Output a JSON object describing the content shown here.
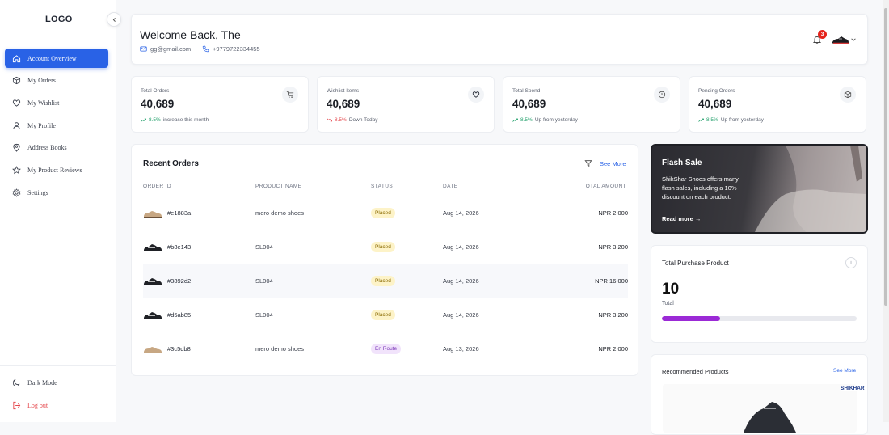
{
  "sidebar": {
    "logo": "LOGO",
    "items": [
      {
        "label": "Account Overview",
        "icon": "home-icon",
        "active": true
      },
      {
        "label": "My Orders",
        "icon": "box-icon"
      },
      {
        "label": "My Wishlist",
        "icon": "heart-icon"
      },
      {
        "label": "My Profile",
        "icon": "user-icon"
      },
      {
        "label": "Address Books",
        "icon": "map-pin-icon"
      },
      {
        "label": "My Product Reviews",
        "icon": "star-icon"
      },
      {
        "label": "Settings",
        "icon": "gear-icon"
      }
    ],
    "bottom": [
      {
        "label": "Dark Mode",
        "icon": "moon-icon"
      },
      {
        "label": "Log out",
        "icon": "logout-icon"
      }
    ]
  },
  "header": {
    "welcome": "Welcome Back, The",
    "email": "gg@gmail.com",
    "phone": "+9779722334455",
    "notification_count": "3"
  },
  "stats": [
    {
      "label": "Total Orders",
      "value": "40,689",
      "change": "8.5%",
      "change_text": "increase this month",
      "trend": "up",
      "icon": "cart-icon"
    },
    {
      "label": "Wishlist Items",
      "value": "40,689",
      "change": "8.5%",
      "change_text": "Down Today",
      "trend": "down",
      "icon": "heart-icon"
    },
    {
      "label": "Total Spend",
      "value": "40,689",
      "change": "8.5%",
      "change_text": "Up from yesterday",
      "trend": "up",
      "icon": "clock-icon"
    },
    {
      "label": "Pending Orders",
      "value": "40,689",
      "change": "8.5%",
      "change_text": "Up from yesterday",
      "trend": "up",
      "icon": "cube-icon"
    }
  ],
  "orders": {
    "title": "Recent Orders",
    "see_more": "See More",
    "columns": [
      "ORDER ID",
      "PRODUCT NAME",
      "STATUS",
      "DATE",
      "TOTAL AMOUNT"
    ],
    "rows": [
      {
        "id": "#e1883a",
        "product": "mero demo shoes",
        "status": "Placed",
        "date": "Aug 14, 2026",
        "amount": "NPR 2,000",
        "thumb": "tan"
      },
      {
        "id": "#b8e143",
        "product": "SL004",
        "status": "Placed",
        "date": "Aug 14, 2026",
        "amount": "NPR 3,200",
        "thumb": "dark"
      },
      {
        "id": "#3892d2",
        "product": "SL004",
        "status": "Placed",
        "date": "Aug 14, 2026",
        "amount": "NPR 16,000",
        "thumb": "dark"
      },
      {
        "id": "#d5ab85",
        "product": "SL004",
        "status": "Placed",
        "date": "Aug 14, 2026",
        "amount": "NPR 3,200",
        "thumb": "dark"
      },
      {
        "id": "#3c5db8",
        "product": "mero demo shoes",
        "status": "En Route",
        "date": "Aug 13, 2026",
        "amount": "NPR 2,000",
        "thumb": "tan"
      }
    ]
  },
  "flash": {
    "title": "Flash Sale",
    "text": "ShikShar Shoes offers many flash sales, including a 10% discount on each product.",
    "link": "Read more →"
  },
  "purchase": {
    "title": "Total Purchase Product",
    "value": "10",
    "sub": "Total",
    "progress": 0.3,
    "color": "#9b2ad6"
  },
  "recommended": {
    "title": "Recommended Products",
    "see_more": "See More",
    "brand": "SHIKHAR"
  }
}
